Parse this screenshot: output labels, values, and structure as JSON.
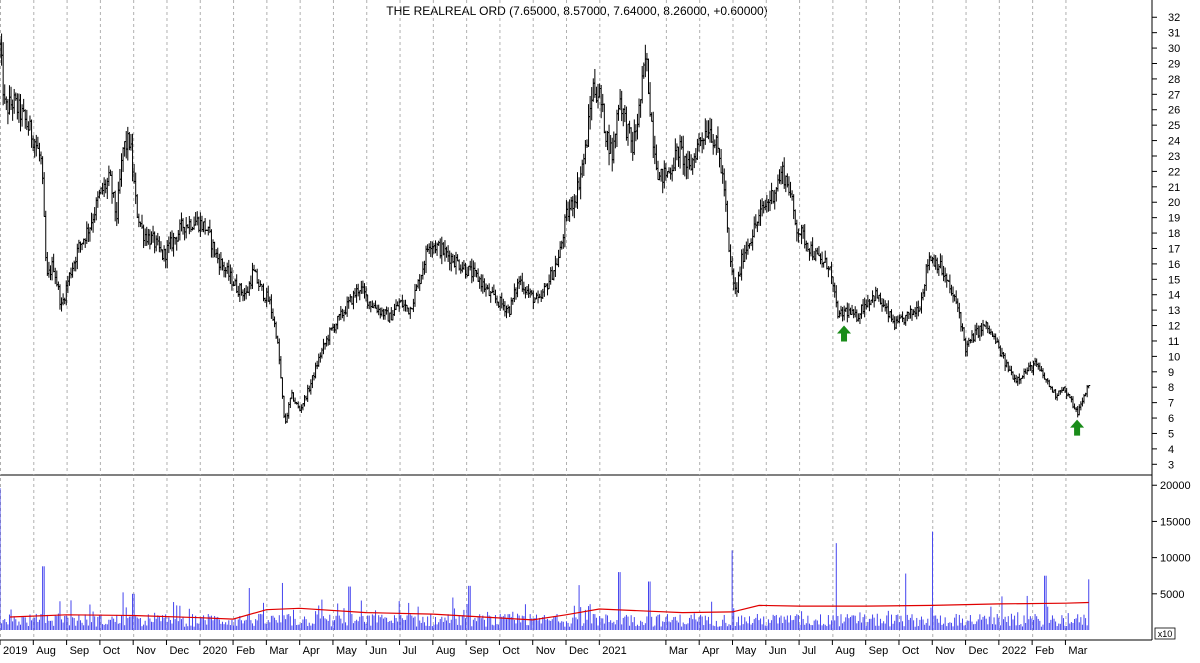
{
  "colors": {
    "background": "#ffffff",
    "price_bars": "#000000",
    "volume_bars": "#4444ee",
    "volume_ma": "#e00000",
    "grid": "#b0b0b0",
    "arrows": "#1a8c1a"
  },
  "icons": [
    "up-arrow-icon",
    "up-arrow-icon"
  ],
  "chart_data": [
    {
      "type": "ohlc",
      "title": "THE REALREAL ORD (7.65000, 8.57000, 7.64000, 8.26000, +0.60000)",
      "y_axis": {
        "position": "right",
        "range": [
          2.5,
          32.6
        ],
        "ticks": [
          3,
          4,
          5,
          6,
          7,
          8,
          9,
          10,
          11,
          12,
          13,
          14,
          15,
          16,
          17,
          18,
          19,
          20,
          21,
          22,
          23,
          24,
          25,
          26,
          27,
          28,
          29,
          30,
          31,
          32
        ]
      },
      "x_axis": {
        "range_months": [
          0,
          34.6
        ],
        "labels": [
          {
            "label": "2019",
            "m": 0
          },
          {
            "label": "Aug",
            "m": 1
          },
          {
            "label": "Sep",
            "m": 2
          },
          {
            "label": "Oct",
            "m": 3
          },
          {
            "label": "Nov",
            "m": 4
          },
          {
            "label": "Dec",
            "m": 5
          },
          {
            "label": "2020",
            "m": 6
          },
          {
            "label": "Feb",
            "m": 7
          },
          {
            "label": "Mar",
            "m": 8
          },
          {
            "label": "Apr",
            "m": 9
          },
          {
            "label": "May",
            "m": 10
          },
          {
            "label": "Jun",
            "m": 11
          },
          {
            "label": "Jul",
            "m": 12
          },
          {
            "label": "Aug",
            "m": 13
          },
          {
            "label": "Sep",
            "m": 14
          },
          {
            "label": "Oct",
            "m": 15
          },
          {
            "label": "Nov",
            "m": 16
          },
          {
            "label": "Dec",
            "m": 17
          },
          {
            "label": "2021",
            "m": 18
          },
          {
            "label": "Mar",
            "m": 20
          },
          {
            "label": "Apr",
            "m": 21
          },
          {
            "label": "May",
            "m": 22
          },
          {
            "label": "Jun",
            "m": 23
          },
          {
            "label": "Jul",
            "m": 24
          },
          {
            "label": "Aug",
            "m": 25
          },
          {
            "label": "Sep",
            "m": 26
          },
          {
            "label": "Oct",
            "m": 27
          },
          {
            "label": "Nov",
            "m": 28
          },
          {
            "label": "Dec",
            "m": 29
          },
          {
            "label": "2022",
            "m": 30
          },
          {
            "label": "Feb",
            "m": 31
          },
          {
            "label": "Mar",
            "m": 32
          }
        ]
      },
      "price_path": [
        [
          0.0,
          30.0
        ],
        [
          0.15,
          26.0
        ],
        [
          0.4,
          26.5
        ],
        [
          0.7,
          25.5
        ],
        [
          1.05,
          24.0
        ],
        [
          1.25,
          22.5
        ],
        [
          1.4,
          15.0
        ],
        [
          1.6,
          16.0
        ],
        [
          1.85,
          13.2
        ],
        [
          2.05,
          15.0
        ],
        [
          2.35,
          17.0
        ],
        [
          2.7,
          18.5
        ],
        [
          3.0,
          20.5
        ],
        [
          3.3,
          21.5
        ],
        [
          3.5,
          19.0
        ],
        [
          3.7,
          23.5
        ],
        [
          3.9,
          24.0
        ],
        [
          4.1,
          19.5
        ],
        [
          4.3,
          18.0
        ],
        [
          4.6,
          17.5
        ],
        [
          4.9,
          16.5
        ],
        [
          5.2,
          17.5
        ],
        [
          5.5,
          18.5
        ],
        [
          5.9,
          18.8
        ],
        [
          6.2,
          18.3
        ],
        [
          6.5,
          16.5
        ],
        [
          6.8,
          15.5
        ],
        [
          7.1,
          14.5
        ],
        [
          7.4,
          14.0
        ],
        [
          7.6,
          15.5
        ],
        [
          7.8,
          14.5
        ],
        [
          8.1,
          13.5
        ],
        [
          8.3,
          11.5
        ],
        [
          8.4,
          9.5
        ],
        [
          8.55,
          5.5
        ],
        [
          8.75,
          7.5
        ],
        [
          9.0,
          6.5
        ],
        [
          9.3,
          8.0
        ],
        [
          9.6,
          10.0
        ],
        [
          9.9,
          11.5
        ],
        [
          10.2,
          12.5
        ],
        [
          10.5,
          13.5
        ],
        [
          10.8,
          14.5
        ],
        [
          11.1,
          13.5
        ],
        [
          11.4,
          13.0
        ],
        [
          11.7,
          12.5
        ],
        [
          12.0,
          13.5
        ],
        [
          12.3,
          13.0
        ],
        [
          12.6,
          15.0
        ],
        [
          12.9,
          17.5
        ],
        [
          13.2,
          17.0
        ],
        [
          13.5,
          16.5
        ],
        [
          13.8,
          16.0
        ],
        [
          14.1,
          15.5
        ],
        [
          14.4,
          15.0
        ],
        [
          14.7,
          14.0
        ],
        [
          15.0,
          13.5
        ],
        [
          15.3,
          13.0
        ],
        [
          15.6,
          15.0
        ],
        [
          15.9,
          14.0
        ],
        [
          16.2,
          13.5
        ],
        [
          16.5,
          15.0
        ],
        [
          16.8,
          16.5
        ],
        [
          17.0,
          19.0
        ],
        [
          17.3,
          20.5
        ],
        [
          17.6,
          23.5
        ],
        [
          17.8,
          27.5
        ],
        [
          18.0,
          27.0
        ],
        [
          18.2,
          24.5
        ],
        [
          18.4,
          23.0
        ],
        [
          18.6,
          27.0
        ],
        [
          18.8,
          25.0
        ],
        [
          19.0,
          23.5
        ],
        [
          19.2,
          26.0
        ],
        [
          19.4,
          29.5
        ],
        [
          19.6,
          24.5
        ],
        [
          19.8,
          21.5
        ],
        [
          20.1,
          22.0
        ],
        [
          20.4,
          23.5
        ],
        [
          20.7,
          22.0
        ],
        [
          21.0,
          24.0
        ],
        [
          21.3,
          25.0
        ],
        [
          21.6,
          23.0
        ],
        [
          21.75,
          21.0
        ],
        [
          21.9,
          16.5
        ],
        [
          22.1,
          14.0
        ],
        [
          22.3,
          16.5
        ],
        [
          22.6,
          18.0
        ],
        [
          22.9,
          19.5
        ],
        [
          23.2,
          20.5
        ],
        [
          23.5,
          22.0
        ],
        [
          23.7,
          21.0
        ],
        [
          23.9,
          18.5
        ],
        [
          24.2,
          17.5
        ],
        [
          24.5,
          16.5
        ],
        [
          24.75,
          16.0
        ],
        [
          24.9,
          16.0
        ],
        [
          25.05,
          14.0
        ],
        [
          25.2,
          12.5
        ],
        [
          25.4,
          13.0
        ],
        [
          25.7,
          12.5
        ],
        [
          26.0,
          13.5
        ],
        [
          26.3,
          14.0
        ],
        [
          26.6,
          13.0
        ],
        [
          26.9,
          12.0
        ],
        [
          27.2,
          12.5
        ],
        [
          27.5,
          13.0
        ],
        [
          27.65,
          13.5
        ],
        [
          27.9,
          16.5
        ],
        [
          28.2,
          16.0
        ],
        [
          28.5,
          14.5
        ],
        [
          28.8,
          13.0
        ],
        [
          29.0,
          10.5
        ],
        [
          29.3,
          11.5
        ],
        [
          29.6,
          12.0
        ],
        [
          29.9,
          11.0
        ],
        [
          30.2,
          9.5
        ],
        [
          30.5,
          8.5
        ],
        [
          30.8,
          9.0
        ],
        [
          31.1,
          9.5
        ],
        [
          31.4,
          8.5
        ],
        [
          31.7,
          7.5
        ],
        [
          31.9,
          8.0
        ],
        [
          32.2,
          7.0
        ],
        [
          32.35,
          6.3
        ],
        [
          32.5,
          7.0
        ],
        [
          32.7,
          8.26
        ]
      ],
      "annotations": [
        {
          "type": "up-arrow",
          "m": 25.35,
          "y": 12.0
        },
        {
          "type": "up-arrow",
          "m": 32.35,
          "y": 5.9
        }
      ]
    },
    {
      "type": "bar",
      "title": "",
      "y_axis": {
        "position": "right",
        "range": [
          0,
          21000
        ],
        "ticks": [
          5000,
          10000,
          15000,
          20000
        ]
      },
      "axis_note": "x10",
      "baseline": 1500,
      "spikes": [
        {
          "m": 0.0,
          "v": 19600
        },
        {
          "m": 1.3,
          "v": 8800
        },
        {
          "m": 3.7,
          "v": 5200
        },
        {
          "m": 4.0,
          "v": 5000
        },
        {
          "m": 7.5,
          "v": 5800
        },
        {
          "m": 8.5,
          "v": 6500
        },
        {
          "m": 10.5,
          "v": 6000
        },
        {
          "m": 14.1,
          "v": 6100
        },
        {
          "m": 17.4,
          "v": 6200
        },
        {
          "m": 18.6,
          "v": 8000
        },
        {
          "m": 19.5,
          "v": 6700
        },
        {
          "m": 22.0,
          "v": 11000
        },
        {
          "m": 25.1,
          "v": 12000
        },
        {
          "m": 27.2,
          "v": 7800
        },
        {
          "m": 28.0,
          "v": 13600
        },
        {
          "m": 31.4,
          "v": 7500
        },
        {
          "m": 32.7,
          "v": 7000
        }
      ],
      "ma": [
        [
          0.3,
          1800
        ],
        [
          2.0,
          2100
        ],
        [
          4.0,
          2000
        ],
        [
          6.0,
          1700
        ],
        [
          7.0,
          1500
        ],
        [
          8.0,
          2800
        ],
        [
          9.0,
          3000
        ],
        [
          11.0,
          2400
        ],
        [
          13.0,
          2200
        ],
        [
          14.5,
          1800
        ],
        [
          16.0,
          1400
        ],
        [
          17.0,
          2100
        ],
        [
          18.0,
          2900
        ],
        [
          19.5,
          2600
        ],
        [
          20.5,
          2400
        ],
        [
          22.0,
          2500
        ],
        [
          22.8,
          3400
        ],
        [
          24.0,
          3300
        ],
        [
          26.0,
          3300
        ],
        [
          28.0,
          3400
        ],
        [
          30.0,
          3600
        ],
        [
          32.0,
          3700
        ],
        [
          32.7,
          3800
        ]
      ]
    }
  ]
}
